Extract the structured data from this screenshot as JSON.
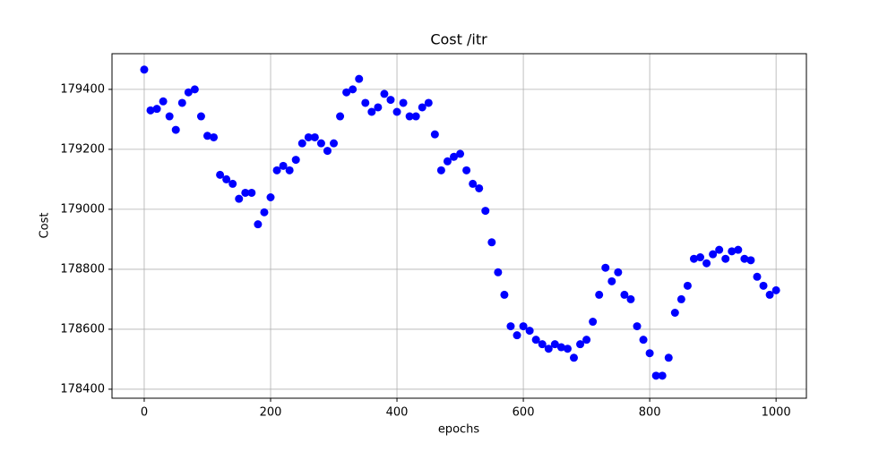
{
  "chart_data": {
    "type": "scatter",
    "title": "Cost /itr",
    "xlabel": "epochs",
    "ylabel": "Cost",
    "x": [
      0,
      10,
      20,
      30,
      40,
      50,
      60,
      70,
      80,
      90,
      100,
      110,
      120,
      130,
      140,
      150,
      160,
      170,
      180,
      190,
      200,
      210,
      220,
      230,
      240,
      250,
      260,
      270,
      280,
      290,
      300,
      310,
      320,
      330,
      340,
      350,
      360,
      370,
      380,
      390,
      400,
      410,
      420,
      430,
      440,
      450,
      460,
      470,
      480,
      490,
      500,
      510,
      520,
      530,
      540,
      550,
      560,
      570,
      580,
      590,
      600,
      610,
      620,
      630,
      640,
      650,
      660,
      670,
      680,
      690,
      700,
      710,
      720,
      730,
      740,
      750,
      760,
      770,
      780,
      790,
      800,
      810,
      820,
      830,
      840,
      850,
      860,
      870,
      880,
      890,
      900,
      910,
      920,
      930,
      940,
      950,
      960,
      970,
      980,
      990,
      1000
    ],
    "series": [
      {
        "color": "blue",
        "values": [
          179466,
          179330,
          179335,
          179360,
          179310,
          179265,
          179355,
          179390,
          179400,
          179310,
          179245,
          179240,
          179115,
          179100,
          179085,
          179035,
          179055,
          179055,
          178950,
          178990,
          179040,
          179130,
          179145,
          179130,
          179165,
          179220,
          179240,
          179240,
          179220,
          179195,
          179220,
          179310,
          179390,
          179400,
          179435,
          179355,
          179325,
          179340,
          179385,
          179365,
          179325,
          179355,
          179310,
          179310,
          179340,
          179355,
          179250,
          179130,
          179160,
          179175,
          179185,
          179130,
          179085,
          179070,
          178995,
          178890,
          178790,
          178715,
          178610,
          178580,
          178610,
          178595,
          178565,
          178550,
          178535,
          178550,
          178540,
          178535,
          178505,
          178550,
          178565,
          178625,
          178715,
          178805,
          178760,
          178790,
          178715,
          178700,
          178610,
          178565,
          178520,
          178445,
          178445,
          178505,
          178655,
          178700,
          178745,
          178835,
          178840,
          178820,
          178850,
          178865,
          178835,
          178860,
          178865,
          178835,
          178830,
          178775,
          178745,
          178715,
          178730
        ]
      }
    ],
    "xlim": [
      -51,
      1048
    ],
    "ylim": [
      178370,
      179519
    ],
    "xticks": [
      0,
      200,
      400,
      600,
      800,
      1000
    ],
    "yticks": [
      178400,
      178600,
      178800,
      179000,
      179200,
      179400
    ],
    "grid": true
  }
}
